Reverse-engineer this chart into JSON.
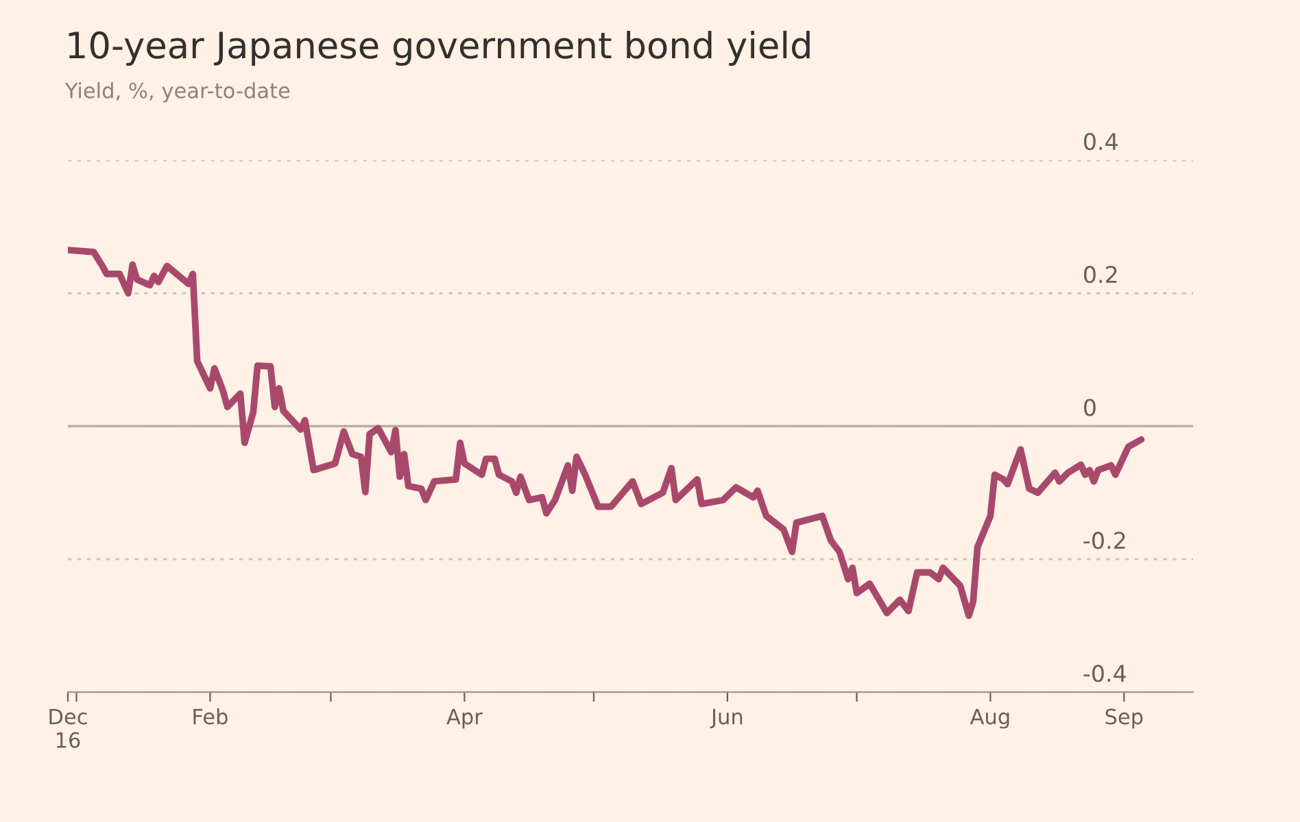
{
  "chart_data": {
    "type": "line",
    "title": "10-year Japanese government bond yield",
    "subtitle": "Yield, %, year-to-date",
    "x": [
      "2016-12-30",
      "2017-01-05",
      "2017-01-07",
      "2017-01-08",
      "2017-01-11",
      "2017-01-13",
      "2017-01-14",
      "2017-01-15",
      "2017-01-18",
      "2017-01-19",
      "2017-01-20",
      "2017-01-22",
      "2017-01-27",
      "2017-01-28",
      "2017-01-29",
      "2017-02-01",
      "2017-02-02",
      "2017-02-04",
      "2017-02-05",
      "2017-02-08",
      "2017-02-09",
      "2017-02-11",
      "2017-02-12",
      "2017-02-15",
      "2017-02-16",
      "2017-02-17",
      "2017-02-18",
      "2017-02-22",
      "2017-02-23",
      "2017-02-25",
      "2017-03-02",
      "2017-03-04",
      "2017-03-06",
      "2017-03-08",
      "2017-03-09",
      "2017-03-10",
      "2017-03-12",
      "2017-03-15",
      "2017-03-16",
      "2017-03-17",
      "2017-03-18",
      "2017-03-19",
      "2017-03-22",
      "2017-03-23",
      "2017-03-25",
      "2017-03-30",
      "2017-03-31",
      "2017-04-01",
      "2017-04-05",
      "2017-04-06",
      "2017-04-08",
      "2017-04-09",
      "2017-04-12",
      "2017-04-13",
      "2017-04-14",
      "2017-04-16",
      "2017-04-19",
      "2017-04-20",
      "2017-04-22",
      "2017-04-25",
      "2017-04-26",
      "2017-04-27",
      "2017-04-29",
      "2017-05-02",
      "2017-05-05",
      "2017-05-10",
      "2017-05-12",
      "2017-05-17",
      "2017-05-19",
      "2017-05-20",
      "2017-05-25",
      "2017-05-26",
      "2017-05-31",
      "2017-06-03",
      "2017-06-07",
      "2017-06-08",
      "2017-06-10",
      "2017-06-14",
      "2017-06-16",
      "2017-06-17",
      "2017-06-23",
      "2017-06-25",
      "2017-06-27",
      "2017-06-29",
      "2017-06-30",
      "2017-07-01",
      "2017-07-04",
      "2017-07-08",
      "2017-07-11",
      "2017-07-13",
      "2017-07-15",
      "2017-07-18",
      "2017-07-20",
      "2017-07-21",
      "2017-07-25",
      "2017-07-27",
      "2017-07-28",
      "2017-07-29",
      "2017-08-01",
      "2017-08-02",
      "2017-08-04",
      "2017-08-05",
      "2017-08-08",
      "2017-08-10",
      "2017-08-12",
      "2017-08-16",
      "2017-08-17",
      "2017-08-19",
      "2017-08-22",
      "2017-08-23",
      "2017-08-24",
      "2017-08-25",
      "2017-08-26",
      "2017-08-29",
      "2017-08-30",
      "2017-09-02",
      "2017-09-05"
    ],
    "series": [
      {
        "color": "#a8496c",
        "values": [
          0.265,
          0.262,
          0.241,
          0.229,
          0.229,
          0.2,
          0.243,
          0.221,
          0.212,
          0.226,
          0.217,
          0.241,
          0.214,
          0.229,
          0.098,
          0.057,
          0.087,
          0.053,
          0.029,
          0.049,
          -0.025,
          0.021,
          0.091,
          0.09,
          0.029,
          0.057,
          0.023,
          -0.005,
          0.009,
          -0.066,
          -0.056,
          -0.008,
          -0.042,
          -0.046,
          -0.099,
          -0.012,
          -0.003,
          -0.039,
          -0.006,
          -0.076,
          -0.042,
          -0.09,
          -0.094,
          -0.111,
          -0.083,
          -0.08,
          -0.025,
          -0.056,
          -0.073,
          -0.049,
          -0.049,
          -0.073,
          -0.083,
          -0.1,
          -0.076,
          -0.111,
          -0.107,
          -0.131,
          -0.111,
          -0.059,
          -0.097,
          -0.046,
          -0.073,
          -0.121,
          -0.121,
          -0.083,
          -0.117,
          -0.1,
          -0.063,
          -0.111,
          -0.08,
          -0.117,
          -0.111,
          -0.092,
          -0.107,
          -0.097,
          -0.135,
          -0.155,
          -0.189,
          -0.145,
          -0.135,
          -0.172,
          -0.189,
          -0.23,
          -0.213,
          -0.251,
          -0.237,
          -0.281,
          -0.261,
          -0.278,
          -0.22,
          -0.22,
          -0.23,
          -0.213,
          -0.24,
          -0.285,
          -0.264,
          -0.182,
          -0.135,
          -0.073,
          -0.08,
          -0.087,
          -0.035,
          -0.094,
          -0.1,
          -0.07,
          -0.083,
          -0.07,
          -0.058,
          -0.073,
          -0.066,
          -0.083,
          -0.066,
          -0.059,
          -0.073,
          -0.031,
          -0.02
        ]
      }
    ],
    "xlim": [
      "2016-12-30",
      "2017-09-17"
    ],
    "xticks": [
      {
        "value": "2016-12-30",
        "label": "Dec\n16"
      },
      {
        "value": "2017-01-01",
        "label": null
      },
      {
        "value": "2017-02-01",
        "label": "Feb"
      },
      {
        "value": "2017-03-01",
        "label": null
      },
      {
        "value": "2017-04-01",
        "label": "Apr"
      },
      {
        "value": "2017-05-01",
        "label": null
      },
      {
        "value": "2017-06-01",
        "label": "Jun"
      },
      {
        "value": "2017-07-01",
        "label": null
      },
      {
        "value": "2017-08-01",
        "label": "Aug"
      },
      {
        "value": "2017-09-01",
        "label": "Sep"
      }
    ],
    "ylim": [
      -0.4,
      0.4
    ],
    "yticks": [
      {
        "value": 0.4,
        "label": "0.4"
      },
      {
        "value": 0.2,
        "label": "0.2"
      },
      {
        "value": 0,
        "label": "0"
      },
      {
        "value": -0.2,
        "label": "-0.2"
      },
      {
        "value": -0.4,
        "label": "-0.4"
      }
    ],
    "ref_lines": [
      {
        "axis": "y",
        "value": 0,
        "color": "#b3aba4"
      }
    ],
    "grid": "y",
    "marker": "none",
    "line_style": "solid",
    "legend": false
  }
}
